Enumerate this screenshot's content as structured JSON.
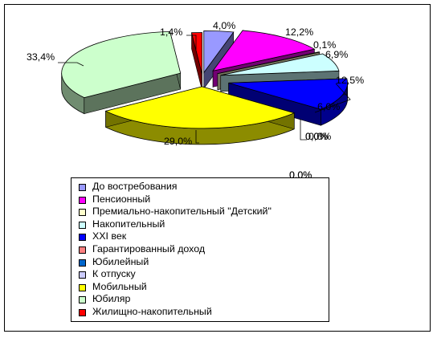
{
  "chart_data": {
    "type": "pie",
    "style": "3d-exploded",
    "legend_position": "bottom",
    "series": [
      {
        "name": "До востребования",
        "value": 4.0,
        "label": "4,0%",
        "color": "#9999ff"
      },
      {
        "name": "Пенсионный",
        "value": 12.2,
        "label": "12,2%",
        "color": "#ff00ff"
      },
      {
        "name": "Премиально-накопительный \"Детский\"",
        "value": 0.1,
        "label": "0,1%",
        "color": "#ffffcc"
      },
      {
        "name": "Накопительный",
        "value": 6.9,
        "label": "6,9%",
        "color": "#ccffff"
      },
      {
        "name": "XXI век",
        "value": 12.5,
        "label": "12,5%",
        "color": "#0000ff"
      },
      {
        "name": "Гарантированный доход",
        "value": 0.0,
        "label": "0,0%",
        "color": "#ff8080"
      },
      {
        "name": "Юбилейный",
        "value": 0.0,
        "label": "0,0%",
        "color": "#0066cc"
      },
      {
        "name": "К отпуску",
        "value": 0.0,
        "label": "0,0%",
        "color": "#ccccff"
      },
      {
        "name": "Мобильный",
        "value": 29.0,
        "label": "29,0%",
        "color": "#ffff00"
      },
      {
        "name": "Юбиляр",
        "value": 33.4,
        "label": "33,4%",
        "color": "#ccffcc"
      },
      {
        "name": "Жилищно-накопительный",
        "value": 1.4,
        "label": "1,4%",
        "color": "#ff0000"
      }
    ],
    "extra_labels": [
      "6,0%",
      "0,0%",
      "0,0%"
    ]
  }
}
